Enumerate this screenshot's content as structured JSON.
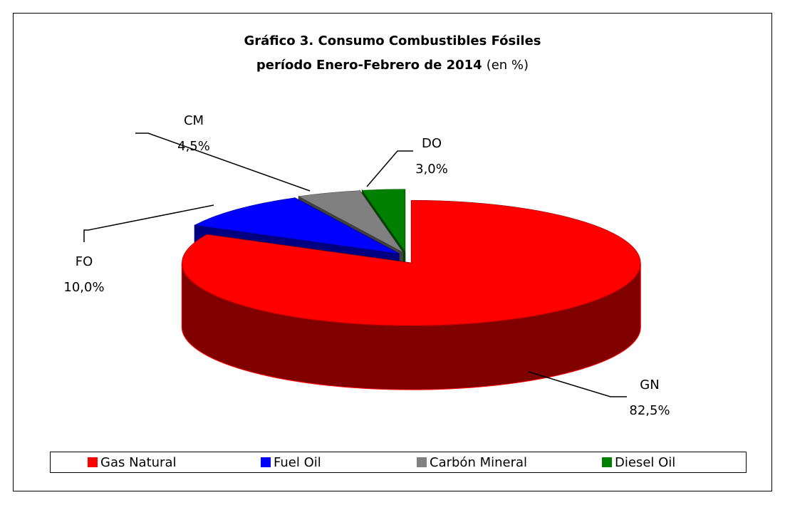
{
  "chart_data": {
    "type": "pie3d",
    "title": "Gráfico 3. Consumo Combustibles Fósiles",
    "title_line2": "período Enero-Febrero de 2014",
    "title_note": "(en %)",
    "categories": [
      "Gas Natural",
      "Fuel Oil",
      "Carbón Mineral",
      "Diesel Oil"
    ],
    "labels": [
      "GN",
      "FO",
      "CM",
      "DO"
    ],
    "values": [
      82.5,
      10.0,
      4.5,
      3.0
    ],
    "value_labels": [
      "82,5%",
      "10,0%",
      "4,5%",
      "3,0%"
    ],
    "colors": [
      "#ff0000",
      "#0000ff",
      "#808080",
      "#008000"
    ],
    "legend": "bottom"
  }
}
